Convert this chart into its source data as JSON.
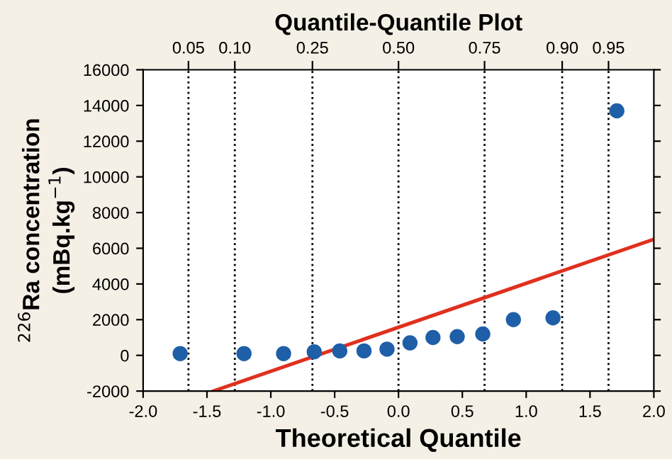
{
  "chart_data": {
    "type": "scatter",
    "title": "Quantile-Quantile Plot",
    "xlabel": "Theoretical Quantile",
    "ylabel": "$^{226}$Ra concentration\n(mBq.kg$^{−1}$)",
    "series": [
      {
        "color": "#1f5fa8",
        "x": [
          -1.71,
          -1.21,
          -0.9,
          -0.66,
          -0.46,
          -0.27,
          -0.09,
          0.09,
          0.27,
          0.46,
          0.66,
          0.9,
          1.21,
          1.71
        ],
        "values": [
          100,
          100,
          100,
          200,
          250,
          250,
          350,
          700,
          1000,
          1050,
          1200,
          2000,
          2100,
          13700
        ]
      },
      {
        "type": "line",
        "marker": "none",
        "color": "#e0301e",
        "x": [
          -1.45,
          2.0
        ],
        "values": [
          -2000,
          6500
        ]
      }
    ],
    "xlim": [
      -2.0,
      2.0
    ],
    "xticks": [
      {
        "value": -2.0,
        "label": "-2.0"
      },
      {
        "value": -1.5,
        "label": "-1.5"
      },
      {
        "value": -1.0,
        "label": "-1.0"
      },
      {
        "value": -0.5,
        "label": "-0.5"
      },
      {
        "value": 0.0,
        "label": "0.0"
      },
      {
        "value": 0.5,
        "label": "0.5"
      },
      {
        "value": 1.0,
        "label": "1.0"
      },
      {
        "value": 1.5,
        "label": "1.5"
      },
      {
        "value": 2.0,
        "label": "2.0"
      }
    ],
    "ylim": [
      -2000,
      16000
    ],
    "yticks": [
      -2000,
      0,
      2000,
      4000,
      6000,
      8000,
      10000,
      12000,
      14000,
      16000
    ],
    "ref_lines": [
      {
        "axis": "x",
        "value": -1.645,
        "line_style": "dotted",
        "color": "#000000"
      },
      {
        "axis": "x",
        "value": -1.282,
        "line_style": "dotted",
        "color": "#000000"
      },
      {
        "axis": "x",
        "value": -0.674,
        "line_style": "dotted",
        "color": "#000000"
      },
      {
        "axis": "x",
        "value": 0.0,
        "line_style": "dotted",
        "color": "#000000"
      },
      {
        "axis": "x",
        "value": 0.674,
        "line_style": "dotted",
        "color": "#000000"
      },
      {
        "axis": "x",
        "value": 1.282,
        "line_style": "dotted",
        "color": "#000000"
      },
      {
        "axis": "x",
        "value": 1.645,
        "line_style": "dotted",
        "color": "#000000"
      }
    ],
    "annotations": [
      "0.05",
      "0.10",
      "0.25",
      "0.50",
      "0.75",
      "0.90",
      "0.95"
    ],
    "marker": "circle",
    "grid": false,
    "legend": false
  }
}
